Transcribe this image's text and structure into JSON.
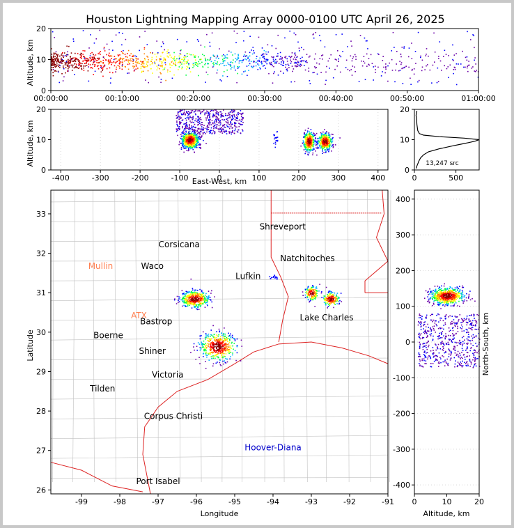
{
  "chart_data": [
    {
      "id": "time_height",
      "type": "scatter",
      "title": "Houston Lightning Mapping Array 0000-0100 UTC April 26, 2025",
      "ylabel": "Altitude, km",
      "xlim_min": [
        0,
        60
      ],
      "ylim": [
        0,
        20
      ],
      "x_ticks": [
        "00:00:00",
        "00:10:00",
        "00:20:00",
        "00:30:00",
        "00:40:00",
        "00:50:00",
        "01:00:00"
      ],
      "y_ticks": [
        0,
        10,
        20
      ]
    },
    {
      "id": "ew_height",
      "type": "scatter",
      "xlabel": "East-West, km",
      "ylabel": "Altitude, km",
      "xlim": [
        -425,
        425
      ],
      "ylim": [
        0,
        20
      ],
      "x_ticks": [
        -400,
        -300,
        -200,
        -100,
        0,
        100,
        200,
        300,
        400
      ],
      "y_ticks": [
        0,
        10,
        20
      ]
    },
    {
      "id": "alt_histogram",
      "type": "line",
      "xlim": [
        0,
        780
      ],
      "ylim": [
        0,
        20
      ],
      "x_ticks": [
        0,
        500
      ],
      "y_ticks": [
        0,
        10,
        20
      ],
      "annotation": "13,247 src",
      "profile_altitude_km": [
        0.5,
        1,
        2,
        3,
        4,
        5,
        6,
        7,
        8,
        8.5,
        9,
        9.5,
        10,
        10.5,
        11,
        11.5,
        12,
        13,
        14,
        15,
        16,
        17,
        18,
        19,
        19.5
      ],
      "profile_counts": [
        20,
        25,
        40,
        55,
        75,
        110,
        170,
        300,
        470,
        560,
        650,
        730,
        780,
        600,
        300,
        110,
        60,
        40,
        35,
        30,
        28,
        25,
        20,
        25,
        30
      ]
    },
    {
      "id": "plan_view",
      "type": "map",
      "xlabel": "Longitude",
      "ylabel": "Latitude",
      "xlim": [
        -99.8,
        -91
      ],
      "ylim": [
        25.9,
        33.6
      ],
      "x_ticks": [
        -99,
        -98,
        -97,
        -96,
        -95,
        -94,
        -93,
        -92,
        -91
      ],
      "y_ticks": [
        26,
        27,
        28,
        29,
        30,
        31,
        32,
        33
      ],
      "cities": [
        {
          "name": "Shreveport",
          "lon": -93.75,
          "lat": 32.6,
          "color": "#000000"
        },
        {
          "name": "Corsicana",
          "lon": -96.45,
          "lat": 32.15,
          "color": "#000000"
        },
        {
          "name": "Natchitoches",
          "lon": -93.1,
          "lat": 31.8,
          "color": "#000000"
        },
        {
          "name": "Mullin",
          "lon": -98.5,
          "lat": 31.6,
          "color": "#ff7f50"
        },
        {
          "name": "Waco",
          "lon": -97.15,
          "lat": 31.6,
          "color": "#000000"
        },
        {
          "name": "Lufkin",
          "lon": -94.65,
          "lat": 31.35,
          "color": "#000000"
        },
        {
          "name": "ATX",
          "lon": -97.5,
          "lat": 30.35,
          "color": "#ff7f50"
        },
        {
          "name": "Bastrop",
          "lon": -97.05,
          "lat": 30.2,
          "color": "#000000"
        },
        {
          "name": "Lake Charles",
          "lon": -92.6,
          "lat": 30.3,
          "color": "#000000"
        },
        {
          "name": "Boerne",
          "lon": -98.3,
          "lat": 29.85,
          "color": "#000000"
        },
        {
          "name": "Shiner",
          "lon": -97.15,
          "lat": 29.45,
          "color": "#000000"
        },
        {
          "name": "Victoria",
          "lon": -96.75,
          "lat": 28.85,
          "color": "#000000"
        },
        {
          "name": "Tilden",
          "lon": -98.45,
          "lat": 28.5,
          "color": "#000000"
        },
        {
          "name": "Corpus Christi",
          "lon": -96.6,
          "lat": 27.8,
          "color": "#000000"
        },
        {
          "name": "Hoover-Diana",
          "lon": -94.0,
          "lat": 27.0,
          "color": "#0000cc"
        },
        {
          "name": "Port Isabel",
          "lon": -97.0,
          "lat": 26.15,
          "color": "#000000"
        }
      ]
    },
    {
      "id": "ns_height",
      "type": "scatter",
      "xlabel": "Altitude, km",
      "ylabel": "North-South, km",
      "xlim": [
        0,
        20
      ],
      "ylim": [
        -425,
        425
      ],
      "x_ticks": [
        0,
        10,
        20
      ],
      "y_ticks": [
        -400,
        -300,
        -200,
        -100,
        0,
        100,
        200,
        300,
        400
      ]
    }
  ],
  "colors": {
    "frame_bg": "#c8c8c8",
    "axes_bg": "#ffffff",
    "county_lines": "#c0c0c0",
    "state_lines": "#dd2222",
    "grid": "#d8d8d8",
    "density_scale": [
      "#6a00a8",
      "#0000ff",
      "#00b0ff",
      "#00ff40",
      "#ffff00",
      "#ff8000",
      "#ff0000",
      "#8b0000"
    ]
  }
}
